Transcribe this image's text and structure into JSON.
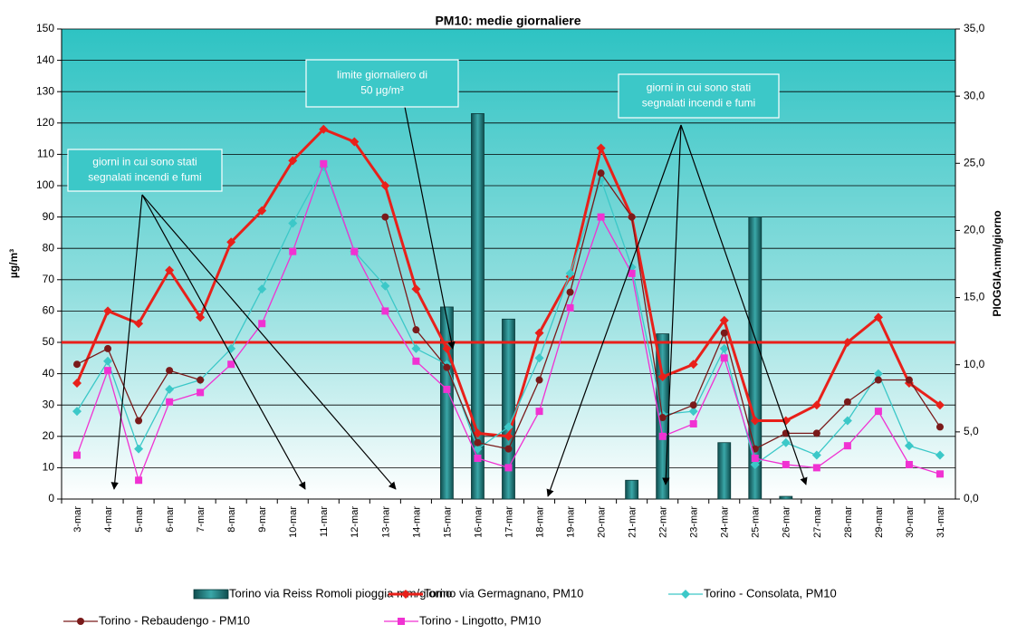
{
  "chart_data": {
    "type": "line",
    "title": "PM10: medie giornaliere",
    "y_label": "µg/m³",
    "y2_label": "PIOGGIA:mm/giorno",
    "categories": [
      "3-mar",
      "4-mar",
      "5-mar",
      "6-mar",
      "7-mar",
      "8-mar",
      "9-mar",
      "10-mar",
      "11-mar",
      "12-mar",
      "13-mar",
      "14-mar",
      "15-mar",
      "16-mar",
      "17-mar",
      "18-mar",
      "19-mar",
      "20-mar",
      "21-mar",
      "22-mar",
      "23-mar",
      "24-mar",
      "25-mar",
      "26-mar",
      "27-mar",
      "28-mar",
      "29-mar",
      "30-mar",
      "31-mar"
    ],
    "ylim": [
      0,
      150
    ],
    "yticks": [
      0,
      10,
      20,
      30,
      40,
      50,
      60,
      70,
      80,
      90,
      100,
      110,
      120,
      130,
      140,
      150
    ],
    "y2lim": [
      0,
      35
    ],
    "y2ticks": [
      {
        "value": 0,
        "label": "0,0"
      },
      {
        "value": 5,
        "label": "5,0"
      },
      {
        "value": 10,
        "label": "10,0"
      },
      {
        "value": 15,
        "label": "15,0"
      },
      {
        "value": 20,
        "label": "20,0"
      },
      {
        "value": 25,
        "label": "25,0"
      },
      {
        "value": 30,
        "label": "30,0"
      },
      {
        "value": 35,
        "label": "35,0"
      }
    ],
    "grid": true,
    "reference_line": {
      "value": 50,
      "color": "#e8201a"
    },
    "annotations": [
      {
        "lines": [
          "giorni in cui sono stati",
          "segnalati incendi e fumi"
        ]
      },
      {
        "lines": [
          "limite giornaliero di",
          "50 μg/m³"
        ]
      },
      {
        "lines": [
          "giorni in cui sono stati",
          "segnalati incendi e fumi"
        ]
      }
    ],
    "series": [
      {
        "name": "Torino via Reiss Romoli pioggia mm/giorno",
        "type": "bar",
        "axis": "y2",
        "color": "#1b6f70",
        "values": [
          0,
          0,
          0,
          0,
          0,
          0,
          0,
          0,
          0,
          0,
          0,
          0,
          14.3,
          28.7,
          13.4,
          0,
          0,
          0,
          1.4,
          12.3,
          0,
          4.2,
          21.0,
          0.2,
          0,
          0,
          0,
          0,
          0
        ]
      },
      {
        "name": "Torino via Germagnano, PM10",
        "type": "line",
        "marker": "diamond",
        "color": "#e8201a",
        "values": [
          37,
          60,
          56,
          73,
          58,
          82,
          92,
          108,
          118,
          114,
          100,
          67,
          48,
          21,
          20,
          53,
          71,
          112,
          90,
          39,
          43,
          57,
          25,
          25,
          30,
          50,
          58,
          37,
          30
        ]
      },
      {
        "name": "Torino - Consolata, PM10",
        "type": "line",
        "marker": "diamond",
        "color": "#3cc8c8",
        "values": [
          28,
          44,
          16,
          35,
          38,
          48,
          67,
          88,
          106,
          79,
          68,
          48,
          43,
          16,
          23,
          45,
          72,
          102,
          74,
          27,
          28,
          48,
          11,
          18,
          14,
          25,
          40,
          17,
          14
        ]
      },
      {
        "name": "Torino - Rebaudengo - PM10",
        "type": "line",
        "marker": "circle",
        "color": "#7a1a1a",
        "values": [
          43,
          48,
          25,
          41,
          38,
          null,
          null,
          null,
          null,
          null,
          90,
          54,
          42,
          18,
          16,
          38,
          66,
          104,
          90,
          26,
          30,
          53,
          16,
          21,
          21,
          31,
          38,
          38,
          23
        ]
      },
      {
        "name": "Torino - Lingotto, PM10",
        "type": "line",
        "marker": "square",
        "color": "#f032d2",
        "values": [
          14,
          41,
          6,
          31,
          34,
          43,
          56,
          79,
          107,
          79,
          60,
          44,
          35,
          13,
          10,
          28,
          61,
          90,
          72,
          20,
          24,
          45,
          13,
          11,
          10,
          17,
          28,
          11,
          8
        ]
      }
    ]
  }
}
